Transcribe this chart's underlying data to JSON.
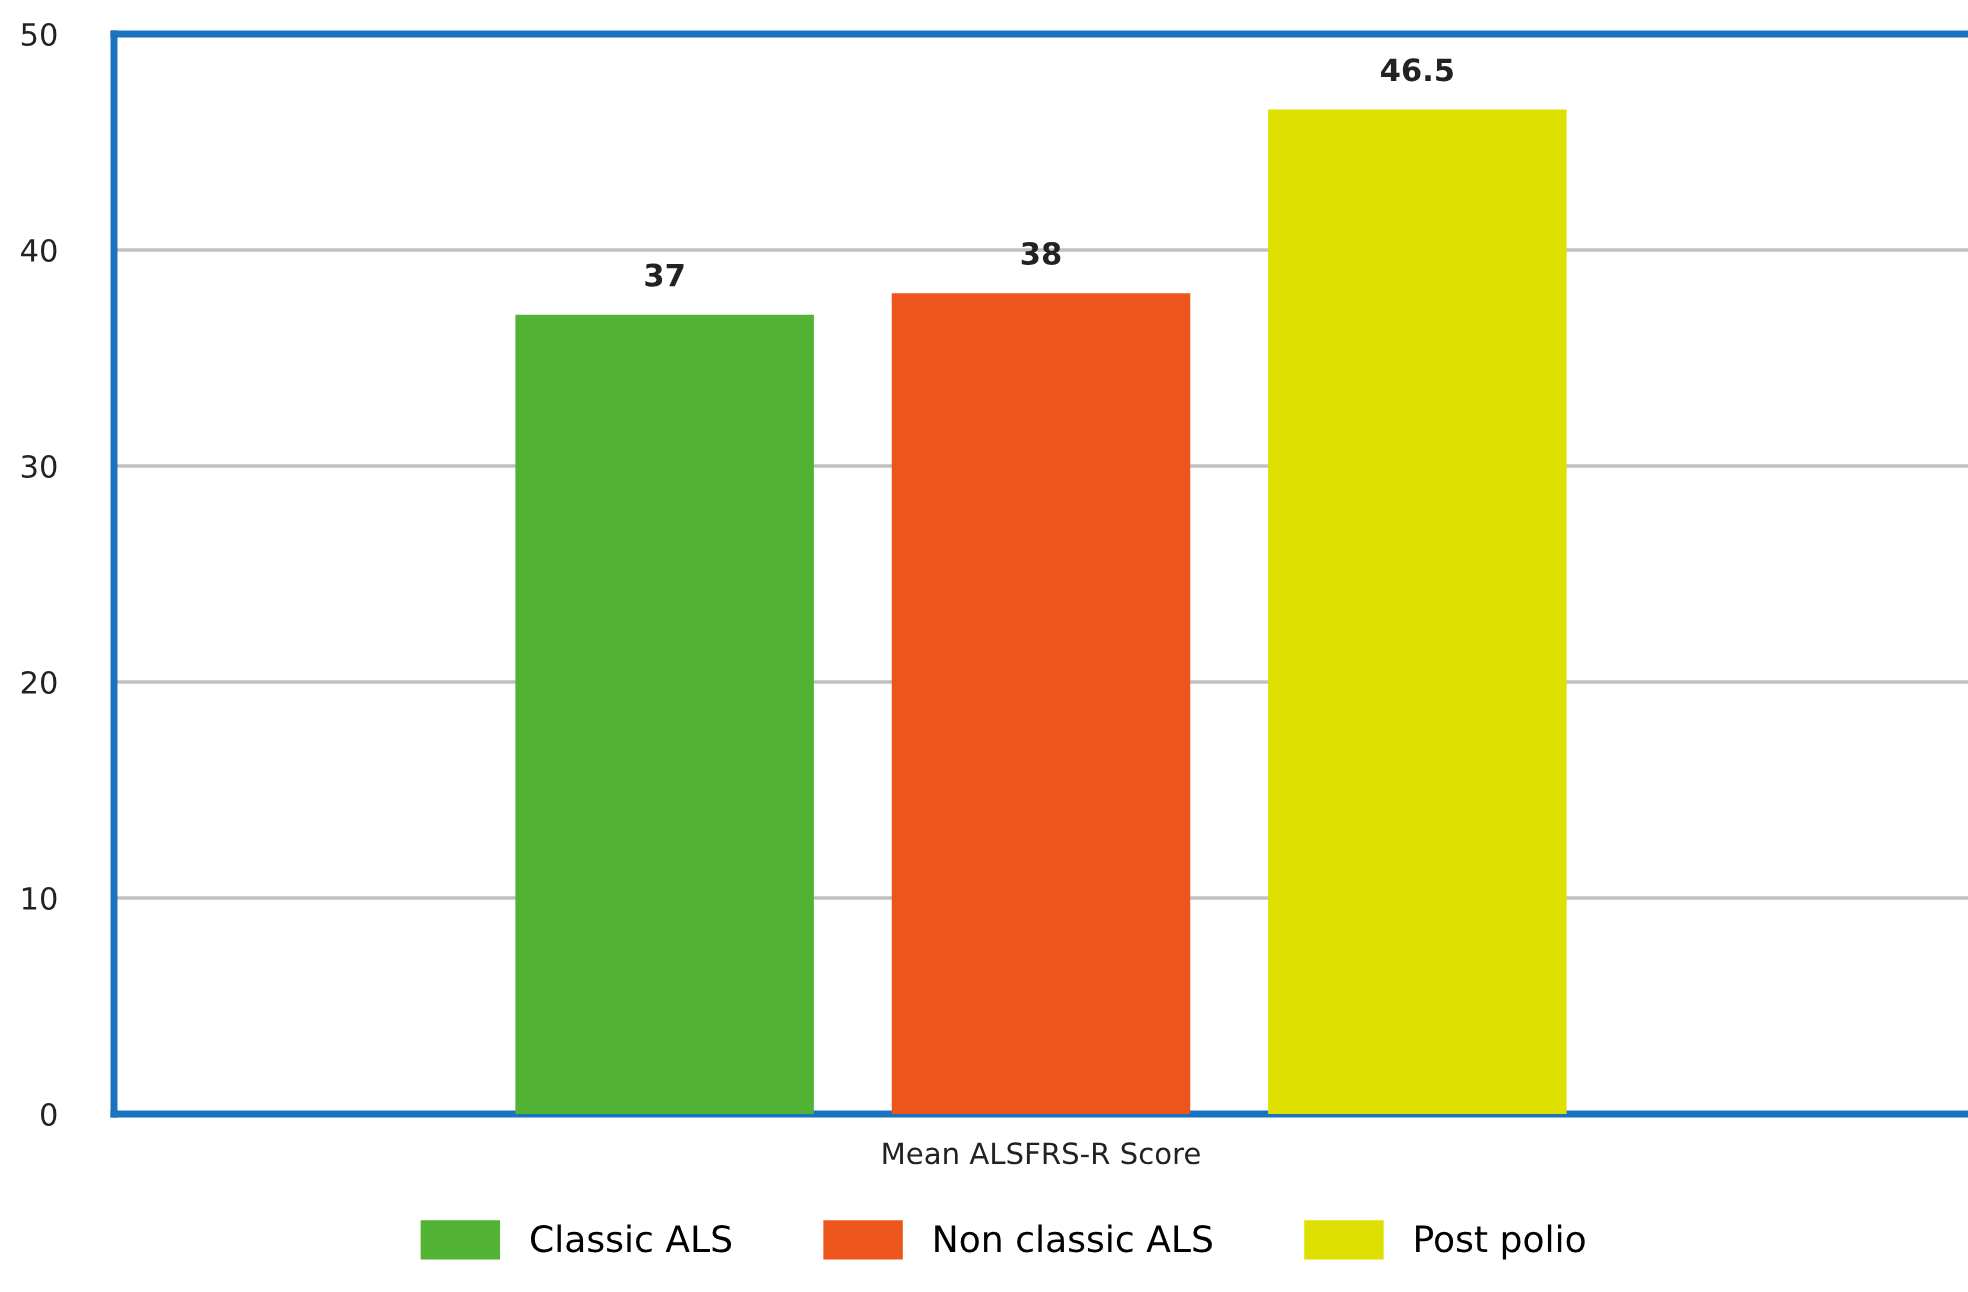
{
  "chart_data": {
    "type": "bar",
    "categories": [
      "Mean ALSFRS-R Score"
    ],
    "series": [
      {
        "name": "Classic ALS",
        "color": "#52b234",
        "values": [
          37
        ]
      },
      {
        "name": "Non classic ALS",
        "color": "#ec561c",
        "values": [
          38
        ]
      },
      {
        "name": "Post polio",
        "color": "#dde000",
        "values": [
          46.5
        ]
      }
    ],
    "ylim": [
      0,
      50
    ],
    "yticks": [
      0,
      10,
      20,
      30,
      40,
      50
    ],
    "grid": "y",
    "legend": "bottom",
    "data_labels": true
  }
}
